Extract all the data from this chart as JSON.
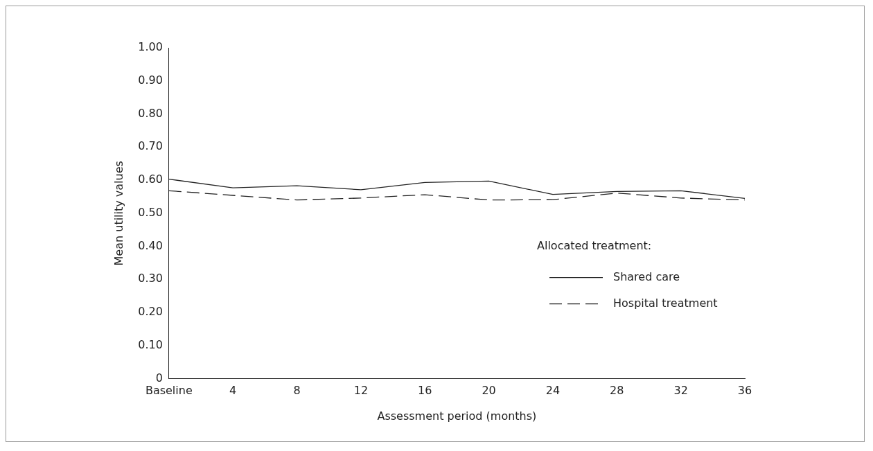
{
  "chart_data": {
    "type": "line",
    "xlabel": "Assessment period (months)",
    "ylabel": "Mean utility values",
    "legend_title": "Allocated treatment:",
    "categories": [
      "Baseline",
      "4",
      "8",
      "12",
      "16",
      "20",
      "24",
      "28",
      "32",
      "36"
    ],
    "series": [
      {
        "name": "Shared care",
        "color": "#222222",
        "line_style": "solid",
        "values": [
          0.603,
          0.577,
          0.583,
          0.571,
          0.593,
          0.597,
          0.557,
          0.566,
          0.568,
          0.545
        ]
      },
      {
        "name": "Hospital treatment",
        "color": "#222222",
        "line_style": "dashed",
        "values": [
          0.568,
          0.554,
          0.54,
          0.546,
          0.556,
          0.54,
          0.541,
          0.561,
          0.546,
          0.54
        ]
      }
    ],
    "ylim": [
      0,
      1
    ],
    "yticks": [
      {
        "value": 0,
        "label": "0"
      },
      {
        "value": 0.1,
        "label": "0.10"
      },
      {
        "value": 0.2,
        "label": "0.20"
      },
      {
        "value": 0.3,
        "label": "0.30"
      },
      {
        "value": 0.4,
        "label": "0.40"
      },
      {
        "value": 0.5,
        "label": "0.50"
      },
      {
        "value": 0.6,
        "label": "0.60"
      },
      {
        "value": 0.7,
        "label": "0.70"
      },
      {
        "value": 0.8,
        "label": "0.80"
      },
      {
        "value": 0.9,
        "label": "0.90"
      },
      {
        "value": 1,
        "label": "1.00"
      }
    ],
    "grid": false,
    "legend": "right",
    "marker": "none"
  }
}
